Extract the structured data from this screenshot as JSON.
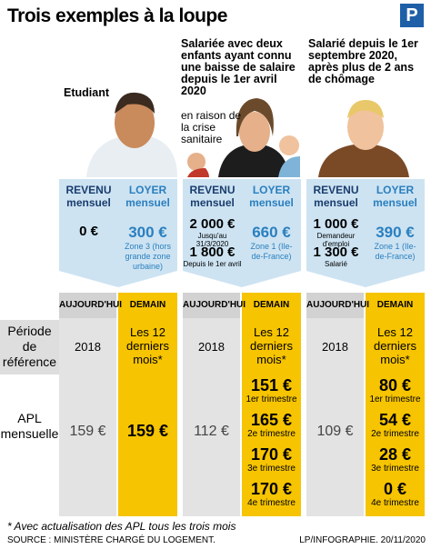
{
  "header": {
    "title": "Trois exemples à la loupe",
    "logo": "P"
  },
  "row_labels": {
    "today": "AUJOURD'HUI",
    "tomorrow": "DEMAIN",
    "period": "Période de référence",
    "apl": "APL mensuelle"
  },
  "column_headers": {
    "revenu": "REVENU mensuel",
    "loyer": "LOYER mensuel"
  },
  "columns": [
    {
      "title": "Etudiant",
      "revenu": [
        {
          "amount": "0 €"
        }
      ],
      "loyer": {
        "amount": "300 €",
        "note": "Zone 3 (hors grande zone urbaine)"
      },
      "period_today": "2018",
      "period_tomorrow": "Les 12 derniers mois*",
      "apl_today": "159 €",
      "apl_tomorrow": [
        {
          "amount": "159 €"
        }
      ]
    },
    {
      "title": "Salariée avec deux enfants ayant connu une baisse de salaire depuis le 1er avril 2020",
      "subtitle": "en raison de la crise sanitaire",
      "revenu": [
        {
          "amount": "2 000 €",
          "note": "Jusqu'au 31/3/2020"
        },
        {
          "amount": "1 800 €",
          "note": "Depuis le 1er avril"
        }
      ],
      "loyer": {
        "amount": "660 €",
        "note": "Zone 1 (Ile-de-France)"
      },
      "period_today": "2018",
      "period_tomorrow": "Les 12 derniers mois*",
      "apl_today": "112 €",
      "apl_tomorrow": [
        {
          "amount": "151 €",
          "note": "1er trimestre"
        },
        {
          "amount": "165 €",
          "note": "2e trimestre"
        },
        {
          "amount": "170 €",
          "note": "3e trimestre"
        },
        {
          "amount": "170 €",
          "note": "4e trimestre"
        }
      ]
    },
    {
      "title": "Salarié depuis le 1er septembre 2020, après plus de 2 ans de chômage",
      "revenu": [
        {
          "amount": "1 000 €",
          "note": "Demandeur d'emploi"
        },
        {
          "amount": "1 300 €",
          "note": "Salarié"
        }
      ],
      "loyer": {
        "amount": "390 €",
        "note": "Zone 1 (Ile-de-France)"
      },
      "period_today": "2018",
      "period_tomorrow": "Les 12 derniers mois*",
      "apl_today": "109 €",
      "apl_tomorrow": [
        {
          "amount": "80 €",
          "note": "1er trimestre"
        },
        {
          "amount": "54 €",
          "note": "2e trimestre"
        },
        {
          "amount": "28 €",
          "note": "3e trimestre"
        },
        {
          "amount": "0 €",
          "note": "4e trimestre"
        }
      ]
    }
  ],
  "footer": {
    "footnote": "* Avec actualisation des APL tous les trois mois",
    "source": "SOURCE : MINISTÈRE CHARGÉ DU LOGEMENT.",
    "credit": "LP/INFOGRAPHIE.  20/11/2020"
  }
}
